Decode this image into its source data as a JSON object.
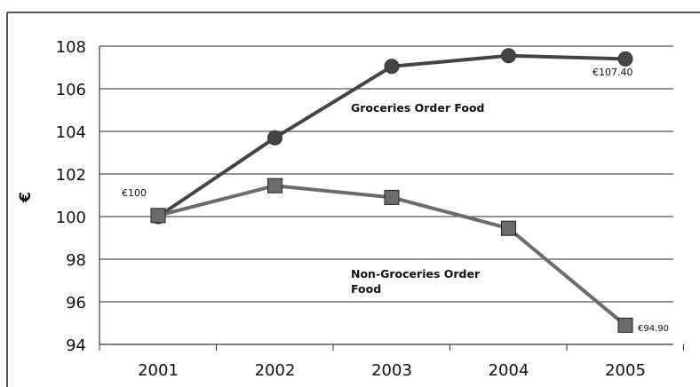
{
  "chart_data": {
    "type": "line",
    "title": "",
    "xlabel": "",
    "ylabel": "€",
    "categories": [
      "2001",
      "2002",
      "2003",
      "2004",
      "2005"
    ],
    "ylim": [
      94,
      108
    ],
    "yticks": [
      "94",
      "96",
      "98",
      "100",
      "102",
      "104",
      "106",
      "108"
    ],
    "grid": true,
    "series": [
      {
        "name": "Groceries Order Food",
        "values": [
          100.0,
          103.7,
          107.05,
          107.55,
          107.4
        ],
        "marker": "circle",
        "color": "#444444"
      },
      {
        "name": "Non-Groceries Order Food",
        "name_lines": [
          "Non-Groceries Order",
          "Food"
        ],
        "values": [
          100.05,
          101.45,
          100.9,
          99.45,
          94.9
        ],
        "marker": "square",
        "color": "#6b6b6b"
      }
    ],
    "annotations": {
      "start_value": "€100",
      "groceries_end_value": "€107.40",
      "non_groceries_end_value": "€94.90"
    }
  }
}
